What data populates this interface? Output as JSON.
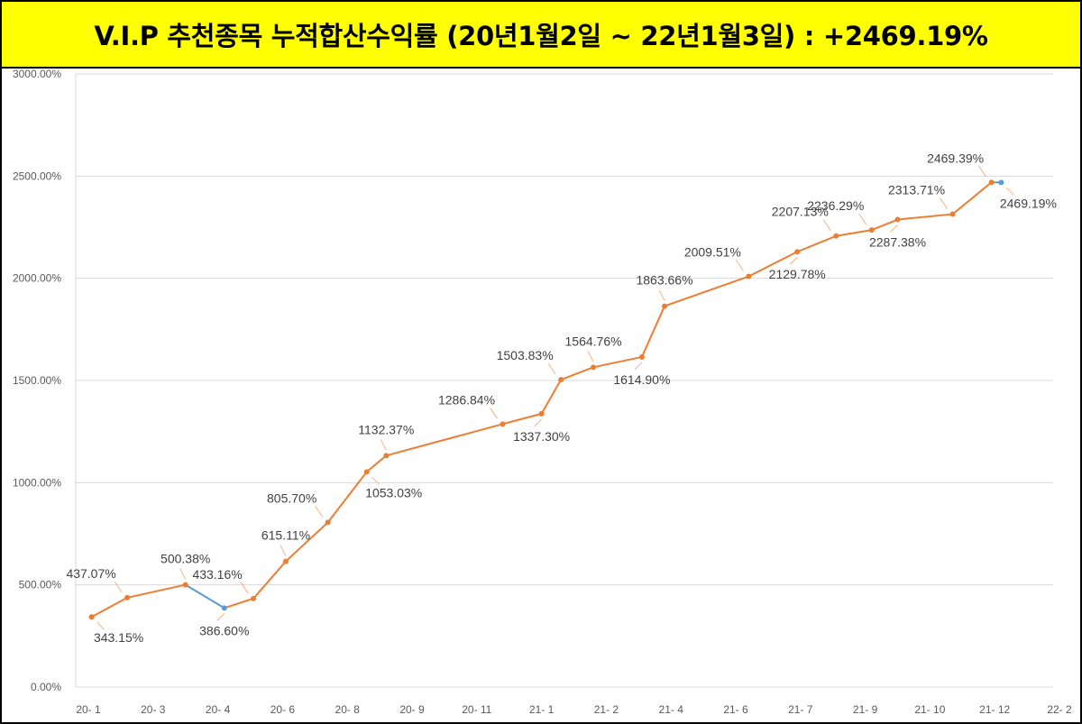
{
  "title": "V.I.P 추천종목 누적합산수익률 (20년1월2일 ~ 22년1월3일) : +2469.19%",
  "colors": {
    "title_bg": "#ffff00",
    "main_line": "#ed7d31",
    "secondary_line": "#5b9bd5",
    "grid": "#d9d9d9",
    "tick_text": "#595959",
    "label_text": "#404040"
  },
  "chart_data": {
    "type": "line",
    "title": "V.I.P 추천종목 누적합산수익률 (20년1월2일 ~ 22년1월3일) : +2469.19%",
    "xlabel": "",
    "ylabel": "",
    "ylim": [
      0,
      3000
    ],
    "yticks": [
      "0.00%",
      "500.00%",
      "1000.00%",
      "1500.00%",
      "2000.00%",
      "2500.00%",
      "3000.00%"
    ],
    "ytick_values": [
      0,
      500,
      1000,
      1500,
      2000,
      2500,
      3000
    ],
    "xticks": [
      "20- 1",
      "20- 3",
      "20- 4",
      "20- 6",
      "20- 8",
      "20- 9",
      "20- 11",
      "21- 1",
      "21- 2",
      "21- 4",
      "21- 6",
      "21- 7",
      "21- 9",
      "21- 10",
      "21- 12",
      "22- 2"
    ],
    "grid": true,
    "legend": "none",
    "points": [
      {
        "x": 0.05,
        "y": 343.15,
        "label": "343.15%",
        "label_pos": "below-right",
        "color": "main"
      },
      {
        "x": 0.6,
        "y": 437.07,
        "label": "437.07%",
        "label_pos": "above-left",
        "color": "main"
      },
      {
        "x": 1.5,
        "y": 500.38,
        "label": "500.38%",
        "label_pos": "above",
        "color": "main"
      },
      {
        "x": 2.1,
        "y": 386.6,
        "label": "386.60%",
        "label_pos": "below",
        "color": "secondary"
      },
      {
        "x": 2.55,
        "y": 433.16,
        "label": "433.16%",
        "label_pos": "above-left",
        "color": "main"
      },
      {
        "x": 3.05,
        "y": 615.11,
        "label": "615.11%",
        "label_pos": "above",
        "color": "main"
      },
      {
        "x": 3.7,
        "y": 805.7,
        "label": "805.70%",
        "label_pos": "above-left",
        "color": "main"
      },
      {
        "x": 4.3,
        "y": 1053.03,
        "label": "1053.03%",
        "label_pos": "below-right",
        "color": "main"
      },
      {
        "x": 4.6,
        "y": 1132.37,
        "label": "1132.37%",
        "label_pos": "above",
        "color": "main"
      },
      {
        "x": 6.4,
        "y": 1286.84,
        "label": "1286.84%",
        "label_pos": "above-left",
        "color": "main"
      },
      {
        "x": 7.0,
        "y": 1337.3,
        "label": "1337.30%",
        "label_pos": "below",
        "color": "main"
      },
      {
        "x": 7.3,
        "y": 1503.83,
        "label": "1503.83%",
        "label_pos": "above-left",
        "color": "main"
      },
      {
        "x": 7.8,
        "y": 1564.76,
        "label": "1564.76%",
        "label_pos": "above",
        "color": "main"
      },
      {
        "x": 8.55,
        "y": 1614.9,
        "label": "1614.90%",
        "label_pos": "below",
        "color": "main"
      },
      {
        "x": 8.9,
        "y": 1863.66,
        "label": "1863.66%",
        "label_pos": "above",
        "color": "main"
      },
      {
        "x": 10.2,
        "y": 2009.51,
        "label": "2009.51%",
        "label_pos": "above-left",
        "color": "main"
      },
      {
        "x": 10.95,
        "y": 2129.78,
        "label": "2129.78%",
        "label_pos": "below",
        "color": "main"
      },
      {
        "x": 11.55,
        "y": 2207.13,
        "label": "2207.13%",
        "label_pos": "above-left",
        "color": "main"
      },
      {
        "x": 12.1,
        "y": 2236.29,
        "label": "2236.29%",
        "label_pos": "above-left",
        "color": "main"
      },
      {
        "x": 12.5,
        "y": 2287.38,
        "label": "2287.38%",
        "label_pos": "below",
        "color": "main"
      },
      {
        "x": 13.35,
        "y": 2313.71,
        "label": "2313.71%",
        "label_pos": "above-left",
        "color": "main"
      },
      {
        "x": 13.95,
        "y": 2469.39,
        "label": "2469.39%",
        "label_pos": "above-left",
        "color": "main"
      },
      {
        "x": 14.1,
        "y": 2469.19,
        "label": "2469.19%",
        "label_pos": "below-right",
        "color": "secondary"
      }
    ],
    "segments": [
      {
        "from": 0,
        "to": 1,
        "color": "main"
      },
      {
        "from": 1,
        "to": 2,
        "color": "main"
      },
      {
        "from": 2,
        "to": 3,
        "color": "secondary"
      },
      {
        "from": 3,
        "to": 4,
        "color": "main"
      },
      {
        "from": 4,
        "to": 5,
        "color": "main"
      },
      {
        "from": 5,
        "to": 6,
        "color": "main"
      },
      {
        "from": 6,
        "to": 7,
        "color": "main"
      },
      {
        "from": 7,
        "to": 8,
        "color": "main"
      },
      {
        "from": 8,
        "to": 9,
        "color": "main"
      },
      {
        "from": 9,
        "to": 10,
        "color": "main"
      },
      {
        "from": 10,
        "to": 11,
        "color": "main"
      },
      {
        "from": 11,
        "to": 12,
        "color": "main"
      },
      {
        "from": 12,
        "to": 13,
        "color": "main"
      },
      {
        "from": 13,
        "to": 14,
        "color": "main"
      },
      {
        "from": 14,
        "to": 15,
        "color": "main"
      },
      {
        "from": 15,
        "to": 16,
        "color": "main"
      },
      {
        "from": 16,
        "to": 17,
        "color": "main"
      },
      {
        "from": 17,
        "to": 18,
        "color": "main"
      },
      {
        "from": 18,
        "to": 19,
        "color": "main"
      },
      {
        "from": 19,
        "to": 20,
        "color": "main"
      },
      {
        "from": 20,
        "to": 21,
        "color": "main"
      },
      {
        "from": 21,
        "to": 22,
        "color": "secondary"
      }
    ]
  }
}
